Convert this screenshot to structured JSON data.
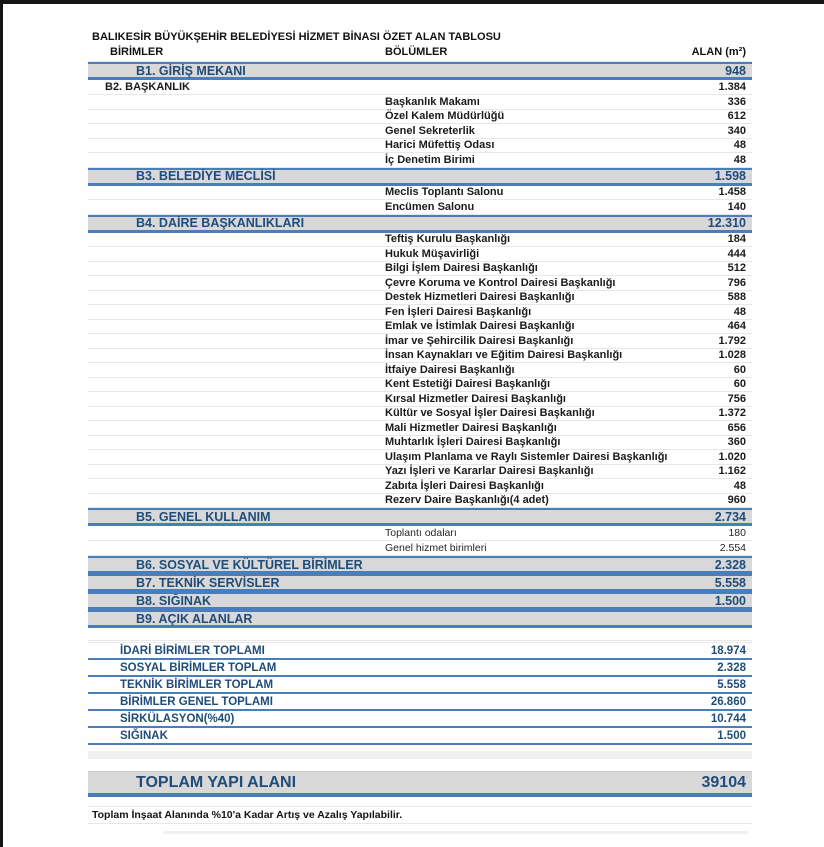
{
  "header": {
    "title": "BALIKESİR BÜYÜKŞEHİR BELEDİYESİ HİZMET BİNASI ÖZET ALAN TABLOSU",
    "columns": [
      "BİRİMLER",
      "BÖLÜMLER",
      "ALAN (m²)"
    ]
  },
  "table": {
    "rows": [
      {
        "type": "section",
        "label": "B1. GİRİŞ MEKANI",
        "value": "948"
      },
      {
        "type": "unit",
        "label": "B2. BAŞKANLIK",
        "value": "1.384"
      },
      {
        "type": "sub",
        "label": "Başkanlık Makamı",
        "value": "336"
      },
      {
        "type": "sub",
        "label": "Özel Kalem Müdürlüğü",
        "value": "612"
      },
      {
        "type": "sub",
        "label": "Genel Sekreterlik",
        "value": "340"
      },
      {
        "type": "sub",
        "label": "Harici Müfettiş Odası",
        "value": "48"
      },
      {
        "type": "sub",
        "label": "İç Denetim Birimi",
        "value": "48"
      },
      {
        "type": "section",
        "label": "B3. BELEDİYE MECLİSİ",
        "value": "1.598"
      },
      {
        "type": "sub",
        "label": "Meclis Toplantı Salonu",
        "value": "1.458"
      },
      {
        "type": "sub",
        "label": "Encümen Salonu",
        "value": "140"
      },
      {
        "type": "section",
        "label": "B4. DAİRE BAŞKANLIKLARI",
        "value": "12.310"
      },
      {
        "type": "sub",
        "label": "Teftiş Kurulu Başkanlığı",
        "value": "184"
      },
      {
        "type": "sub",
        "label": "Hukuk Müşavirliği",
        "value": "444"
      },
      {
        "type": "sub",
        "label": "Bilgi İşlem Dairesi Başkanlığı",
        "value": "512"
      },
      {
        "type": "sub",
        "label": "Çevre Koruma ve Kontrol Dairesi Başkanlığı",
        "value": "796"
      },
      {
        "type": "sub",
        "label": "Destek Hizmetleri Dairesi Başkanlığı",
        "value": "588"
      },
      {
        "type": "sub",
        "label": "Fen İşleri Dairesi Başkanlığı",
        "value": "48"
      },
      {
        "type": "sub",
        "label": "Emlak ve İstimlak Dairesi Başkanlığı",
        "value": "464"
      },
      {
        "type": "sub",
        "label": "İmar ve Şehircilik Dairesi Başkanlığı",
        "value": "1.792"
      },
      {
        "type": "sub",
        "label": "İnsan Kaynakları ve Eğitim Dairesi Başkanlığı",
        "value": "1.028"
      },
      {
        "type": "sub",
        "label": "İtfaiye Dairesi Başkanlığı",
        "value": "60"
      },
      {
        "type": "sub",
        "label": "Kent Estetiği Dairesi Başkanlığı",
        "value": "60"
      },
      {
        "type": "sub",
        "label": "Kırsal Hizmetler Dairesi Başkanlığı",
        "value": "756"
      },
      {
        "type": "sub",
        "label": "Kültür ve Sosyal İşler Dairesi Başkanlığı",
        "value": "1.372"
      },
      {
        "type": "sub",
        "label": "Mali Hizmetler Dairesi Başkanlığı",
        "value": "656"
      },
      {
        "type": "sub",
        "label": "Muhtarlık İşleri Dairesi Başkanlığı",
        "value": "360"
      },
      {
        "type": "sub",
        "label": "Ulaşım Planlama ve Raylı Sistemler Dairesi Başkanlığı",
        "value": "1.020"
      },
      {
        "type": "sub",
        "label": "Yazı İşleri ve Kararlar Dairesi Başkanlığı",
        "value": "1.162"
      },
      {
        "type": "sub",
        "label": "Zabıta  İşleri Dairesi Başkanlığı",
        "value": "48"
      },
      {
        "type": "sub",
        "label": "Rezerv Daire Başkanlığı(4 adet)",
        "value": "960"
      },
      {
        "type": "section",
        "label": "B5. GENEL KULLANIM",
        "value": "2.734"
      },
      {
        "type": "sub-light",
        "label": "Toplantı odaları",
        "value": "180"
      },
      {
        "type": "sub-light",
        "label": "Genel hizmet birimleri",
        "value": "2.554"
      },
      {
        "type": "section",
        "label": "B6. SOSYAL VE KÜLTÜREL BİRİMLER",
        "value": "2.328"
      },
      {
        "type": "section",
        "label": "B7. TEKNİK SERVİSLER",
        "value": "5.558"
      },
      {
        "type": "section",
        "label": "B8. SIĞINAK",
        "value": "1.500"
      },
      {
        "type": "section",
        "label": "B9. AÇIK ALANLAR",
        "value": ""
      }
    ]
  },
  "totals": {
    "rows": [
      {
        "label": "İDARİ BİRİMLER TOPLAMI",
        "value": "18.974"
      },
      {
        "label": "SOSYAL BİRİMLER TOPLAM",
        "value": "2.328"
      },
      {
        "label": "TEKNİK BİRİMLER TOPLAM",
        "value": "5.558"
      },
      {
        "label": "BİRİMLER GENEL TOPLAMI",
        "value": "26.860"
      },
      {
        "label": "SİRKÜLASYON(%40)",
        "value": "10.744"
      },
      {
        "label": "SIĞINAK",
        "value": "1.500"
      }
    ]
  },
  "grand_total": {
    "label": "TOPLAM YAPI ALANI",
    "value": "39104"
  },
  "note": "Toplam İnşaat Alanında %10'a Kadar Artış ve Azalış Yapılabilir.",
  "colors": {
    "accent_blue": "#4a7ebb",
    "navy_text": "#1f4c7a",
    "bar_gray": "#d8d8d8"
  }
}
